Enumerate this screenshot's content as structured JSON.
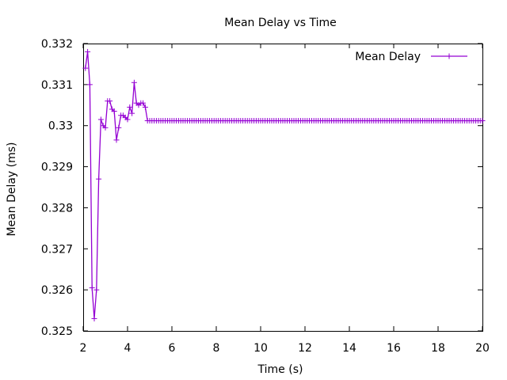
{
  "chart_data": {
    "type": "line",
    "title": "Mean Delay vs Time",
    "xlabel": "Time (s)",
    "ylabel": "Mean Delay (ms)",
    "xlim": [
      2,
      20
    ],
    "ylim": [
      0.325,
      0.332
    ],
    "x_ticks": [
      "2",
      "4",
      "6",
      "8",
      "10",
      "12",
      "14",
      "16",
      "18",
      "20"
    ],
    "y_ticks": [
      "0.325",
      "0.326",
      "0.327",
      "0.328",
      "0.329",
      "0.33",
      "0.331",
      "0.332"
    ],
    "grid": false,
    "legend_position": "top-right",
    "series": [
      {
        "name": "Mean Delay",
        "color": "#9400d3",
        "marker": "plus",
        "x": [
          2.1,
          2.2,
          2.3,
          2.4,
          2.5,
          2.6,
          2.7,
          2.8,
          2.9,
          3.0,
          3.1,
          3.2,
          3.3,
          3.4,
          3.5,
          3.6,
          3.7,
          3.8,
          3.9,
          4.0,
          4.1,
          4.2,
          4.3,
          4.4,
          4.5,
          4.6,
          4.7,
          4.8,
          4.9,
          5.0
        ],
        "y": [
          0.3314,
          0.3318,
          0.331,
          0.32605,
          0.3253,
          0.326,
          0.3287,
          0.33015,
          0.33,
          0.32995,
          0.3306,
          0.3306,
          0.3304,
          0.33035,
          0.32965,
          0.32995,
          0.33025,
          0.33025,
          0.3302,
          0.33015,
          0.33045,
          0.3303,
          0.33105,
          0.33055,
          0.3305,
          0.33055,
          0.33055,
          0.33045,
          0.33012,
          0.33012
        ],
        "steady_value": 0.33012,
        "steady_from": 5.0,
        "steady_to": 20.0,
        "steady_step": 0.1
      }
    ]
  }
}
